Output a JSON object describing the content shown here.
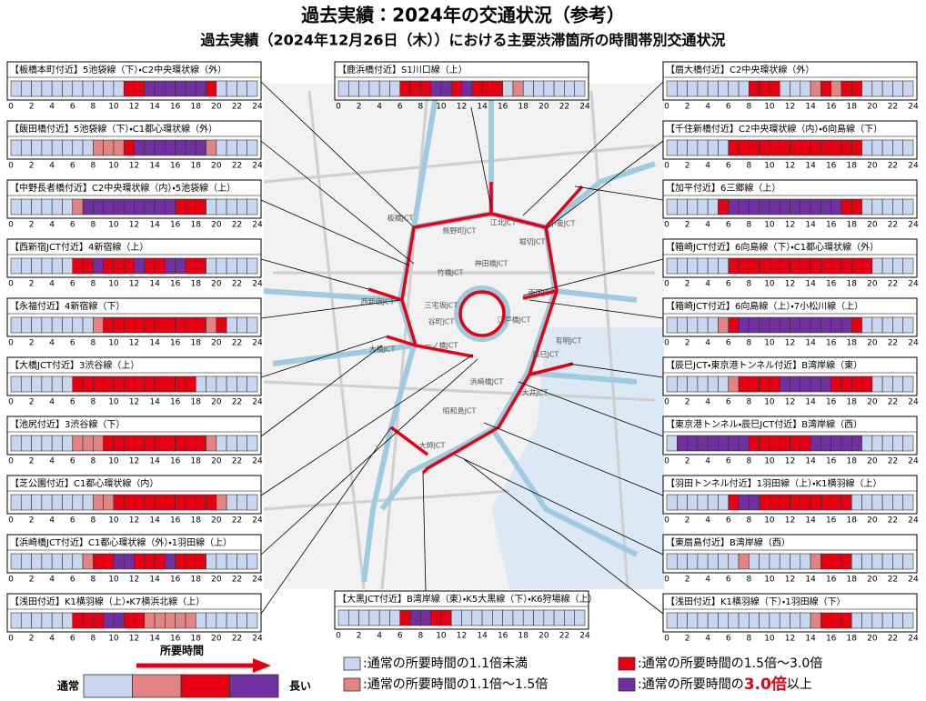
{
  "header": {
    "title": "過去実績：2024年の交通状況（参考）",
    "subtitle": "過去実績（2024年12月26日（木））における主要渋滞箇所の時間帯別交通状況"
  },
  "hours": [
    0,
    2,
    4,
    6,
    8,
    10,
    12,
    14,
    16,
    18,
    20,
    22,
    24
  ],
  "panels": [
    {
      "label": "【板橋本町付近】5池袋線（下）・C2中央環状線（外）",
      "levels": [
        0,
        0,
        0,
        0,
        0,
        0,
        0,
        0,
        0,
        0,
        0,
        2,
        2,
        3,
        3,
        3,
        3,
        3,
        3,
        2,
        0,
        0,
        0,
        0
      ]
    },
    {
      "label": "【飯田橋付近】5池袋線（下）・C1都心環状線（外）",
      "levels": [
        0,
        0,
        0,
        0,
        0,
        0,
        0,
        0,
        1,
        1,
        1,
        2,
        3,
        3,
        3,
        3,
        3,
        3,
        3,
        1,
        0,
        0,
        0,
        0
      ]
    },
    {
      "label": "【中野長者橋付近】C2中央環状線（内）・5池袋線（上）",
      "levels": [
        0,
        0,
        0,
        0,
        0,
        0,
        1,
        3,
        3,
        3,
        3,
        3,
        3,
        3,
        3,
        3,
        2,
        2,
        2,
        0,
        0,
        0,
        0,
        0
      ]
    },
    {
      "label": "【西新宿JCT付近】4新宿線（上）",
      "levels": [
        0,
        0,
        0,
        0,
        0,
        0,
        2,
        2,
        3,
        2,
        2,
        2,
        3,
        2,
        2,
        3,
        3,
        2,
        2,
        0,
        0,
        0,
        0,
        0
      ]
    },
    {
      "label": "【永福付近】4新宿線（下）",
      "levels": [
        0,
        0,
        0,
        0,
        0,
        0,
        0,
        0,
        1,
        2,
        2,
        2,
        2,
        2,
        2,
        2,
        2,
        2,
        2,
        1,
        2,
        0,
        0,
        0
      ]
    },
    {
      "label": "【大橋JCT付近】3渋谷線（上）",
      "levels": [
        0,
        0,
        0,
        0,
        0,
        0,
        2,
        2,
        2,
        2,
        2,
        2,
        2,
        2,
        2,
        2,
        2,
        2,
        0,
        0,
        0,
        0,
        0,
        0
      ]
    },
    {
      "label": "【池尻付近】3渋谷線（下）",
      "levels": [
        0,
        0,
        0,
        0,
        0,
        0,
        1,
        1,
        1,
        2,
        2,
        2,
        2,
        2,
        2,
        2,
        2,
        2,
        2,
        1,
        0,
        0,
        0,
        0
      ]
    },
    {
      "label": "【芝公園付近】C1都心環状線（内）",
      "levels": [
        0,
        0,
        0,
        0,
        0,
        0,
        0,
        0,
        1,
        1,
        2,
        2,
        2,
        2,
        2,
        2,
        2,
        2,
        2,
        2,
        1,
        0,
        0,
        0
      ]
    },
    {
      "label": "【浜崎橋JCT付近】C1都心環状線（外）・1羽田線（上）",
      "levels": [
        0,
        0,
        0,
        0,
        0,
        0,
        0,
        1,
        2,
        2,
        3,
        3,
        2,
        2,
        2,
        3,
        2,
        2,
        2,
        0,
        0,
        0,
        0,
        0
      ]
    },
    {
      "label": "【浅田付近】K1横羽線（上）・K7横浜北線（上）",
      "levels": [
        0,
        0,
        0,
        0,
        0,
        0,
        2,
        2,
        2,
        3,
        3,
        2,
        2,
        1,
        1,
        1,
        1,
        1,
        0,
        0,
        0,
        0,
        0,
        0
      ]
    },
    {
      "label": "【扇大橋付近】C2中央環状線（外）",
      "levels": [
        0,
        0,
        0,
        0,
        0,
        0,
        0,
        0,
        2,
        2,
        2,
        0,
        0,
        0,
        1,
        2,
        1,
        2,
        2,
        0,
        0,
        0,
        0,
        0
      ]
    },
    {
      "label": "【千住新橋付近】C2中央環状線（内）・6向島線（下）",
      "levels": [
        0,
        0,
        0,
        0,
        0,
        0,
        2,
        2,
        2,
        2,
        2,
        2,
        2,
        2,
        2,
        2,
        2,
        2,
        2,
        0,
        0,
        0,
        0,
        0
      ]
    },
    {
      "label": "【加平付近】6三郷線（上）",
      "levels": [
        0,
        0,
        0,
        0,
        0,
        2,
        3,
        3,
        3,
        3,
        3,
        3,
        3,
        3,
        3,
        3,
        3,
        2,
        2,
        0,
        0,
        0,
        0,
        0
      ]
    },
    {
      "label": "【箱崎JCT付近】6向島線（下）・C1都心環状線（外）",
      "levels": [
        0,
        0,
        0,
        0,
        0,
        0,
        2,
        2,
        2,
        2,
        2,
        2,
        2,
        2,
        2,
        2,
        2,
        2,
        2,
        2,
        0,
        0,
        0,
        0
      ]
    },
    {
      "label": "【箱崎JCT付近】6向島線（上）・7小松川線（上）",
      "levels": [
        0,
        0,
        0,
        0,
        0,
        1,
        2,
        3,
        3,
        3,
        3,
        3,
        3,
        3,
        3,
        3,
        3,
        3,
        2,
        0,
        0,
        0,
        0,
        0
      ]
    },
    {
      "label": "【辰巳JCT・東京港トンネル付近】B湾岸線（東）",
      "levels": [
        0,
        0,
        0,
        0,
        0,
        0,
        1,
        2,
        2,
        2,
        2,
        3,
        3,
        3,
        3,
        3,
        2,
        2,
        2,
        2,
        0,
        0,
        0,
        0
      ]
    },
    {
      "label": "【東京港トンネル・辰巳JCT付近】B湾岸線（西）",
      "levels": [
        0,
        3,
        3,
        3,
        3,
        3,
        3,
        3,
        2,
        2,
        2,
        2,
        2,
        2,
        3,
        3,
        3,
        3,
        3,
        0,
        0,
        0,
        0,
        0
      ]
    },
    {
      "label": "【羽田トンネル付近】1羽田線（上）・K1横羽線（上）",
      "levels": [
        0,
        0,
        0,
        0,
        0,
        0,
        2,
        3,
        3,
        2,
        2,
        2,
        2,
        2,
        2,
        2,
        2,
        2,
        0,
        0,
        0,
        0,
        0,
        0
      ]
    },
    {
      "label": "【東扇島付近】B湾岸線（西）",
      "levels": [
        0,
        0,
        0,
        0,
        0,
        0,
        0,
        1,
        0,
        0,
        0,
        0,
        0,
        0,
        1,
        2,
        2,
        2,
        0,
        0,
        0,
        0,
        0,
        0
      ]
    },
    {
      "label": "【浅田付近】K1横羽線（下）・1羽田線（下）",
      "levels": [
        0,
        0,
        0,
        0,
        0,
        0,
        0,
        0,
        0,
        0,
        0,
        0,
        0,
        0,
        1,
        2,
        2,
        2,
        0,
        0,
        0,
        0,
        0,
        0
      ]
    },
    {
      "label": "【鹿浜橋付近】S1川口線（上）",
      "levels": [
        0,
        0,
        0,
        0,
        0,
        0,
        2,
        2,
        2,
        3,
        3,
        2,
        3,
        2,
        2,
        2,
        0,
        1,
        0,
        0,
        0,
        0,
        0,
        0
      ]
    },
    {
      "label": "【大黒JCT付近】B湾岸線（東）・K5大黒線（下）・K6狩場線（上）",
      "levels": [
        0,
        0,
        0,
        0,
        0,
        0,
        2,
        3,
        3,
        2,
        2,
        0,
        0,
        0,
        0,
        0,
        0,
        0,
        0,
        0,
        0,
        0,
        0,
        0
      ]
    }
  ],
  "map": {
    "labels": [
      "板橋JCT",
      "熊野町JCT",
      "江北JCT",
      "小菅JCT",
      "堀切JCT",
      "両国JCT",
      "竹橋JCT",
      "神田橋JCT",
      "江戸橋JCT",
      "浜崎橋JCT",
      "一ノ橋JCT",
      "谷町JCT",
      "三宅坂JCT",
      "西新宿JCT",
      "大橋JCT",
      "辰巳JCT",
      "大井JCT",
      "昭和島JCT",
      "大師JCT",
      "有明JCT"
    ]
  },
  "legend": {
    "axis_title": "所要時間",
    "low": "通常",
    "high": "長い",
    "colors": [
      "#c9d6ef",
      "#e08484",
      "#e60012",
      "#7030a0"
    ],
    "items": [
      {
        "text": ":通常の所要時間の1.1倍未満"
      },
      {
        "text": ":通常の所要時間の1.1倍～1.5倍"
      },
      {
        "text": ":通常の所要時間の1.5倍～3.0倍"
      },
      {
        "before": ":通常の所要時間の",
        "emph": "3.0倍",
        "after": "以上"
      }
    ]
  }
}
